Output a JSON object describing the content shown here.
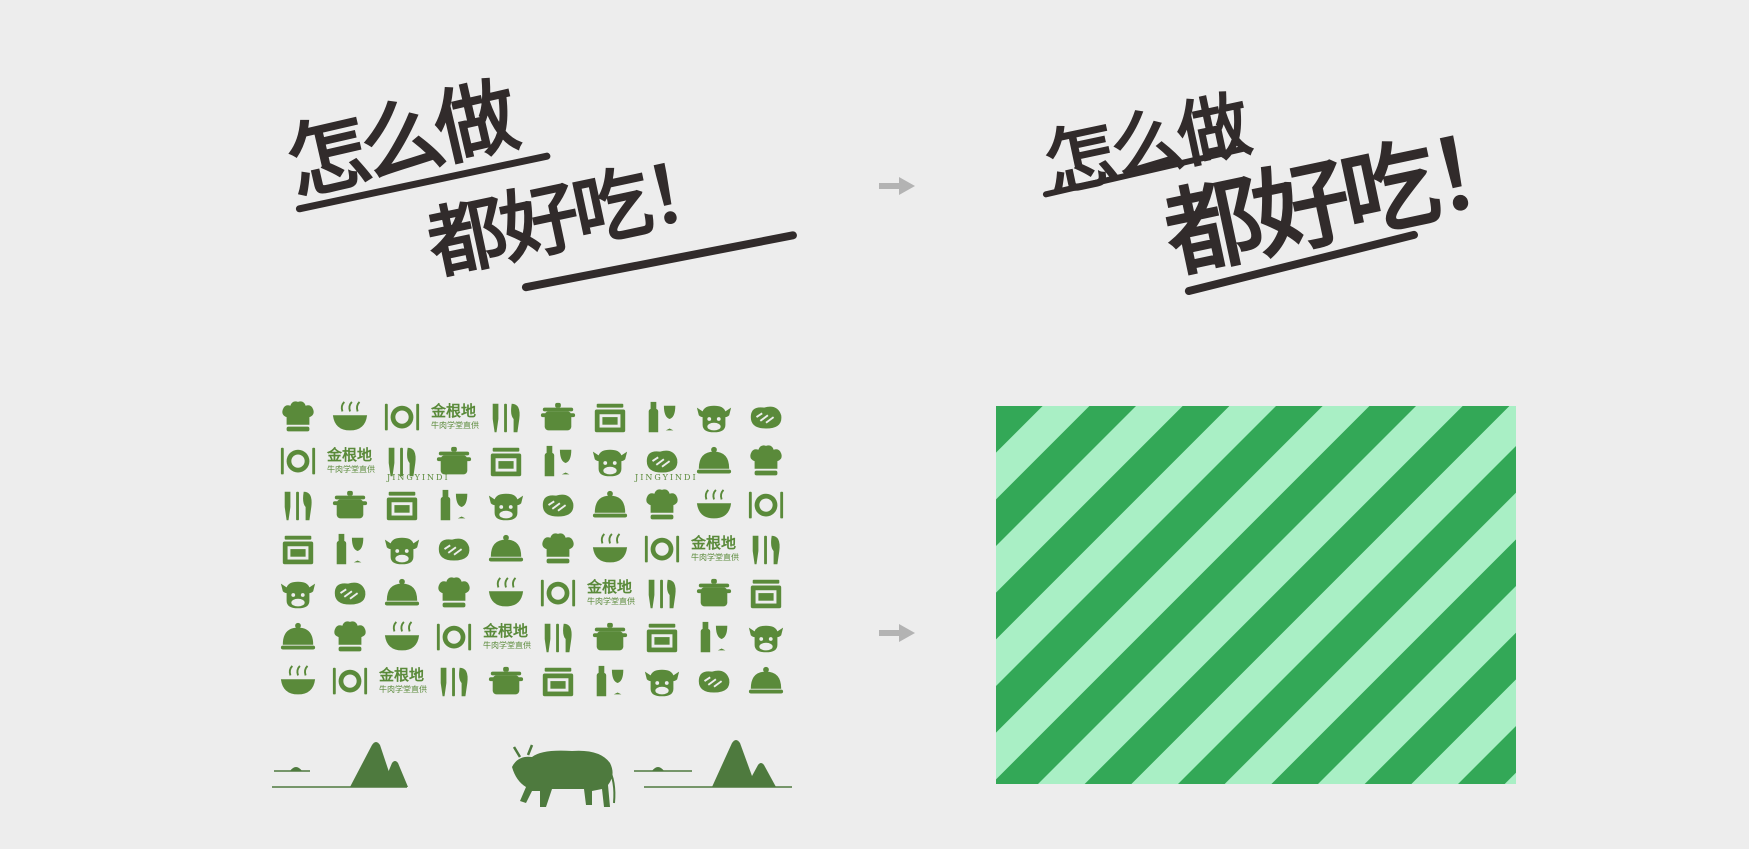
{
  "before_title": {
    "line1": "怎么做",
    "line2": "都好吃！"
  },
  "after_title": {
    "line1": "怎么做",
    "line2": "都好吃！"
  },
  "brand": {
    "logo_text": "金根地",
    "logo_sub": "牛肉学堂直供",
    "wordmark": "JINGYINDI"
  },
  "colors": {
    "ink": "#312b2b",
    "pattern_green": "#5a8a3a",
    "landscape_green": "#4e7a3e",
    "stripe_dark": "#33a857",
    "stripe_light": "#a9efc5",
    "arrow": "#b3b3b3",
    "background": "#ededed"
  },
  "icons": [
    "chef-hat-icon",
    "cow-head-icon",
    "pot-icon",
    "plate-cutlery-icon",
    "cloche-icon",
    "wine-bottle-icon",
    "knife-fork-icon",
    "bowl-icon",
    "steak-icon",
    "stove-icon"
  ]
}
